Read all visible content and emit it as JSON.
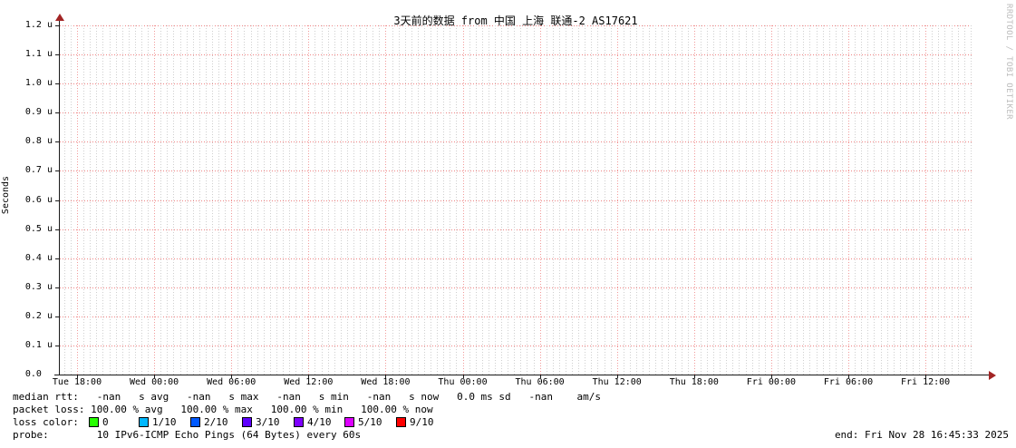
{
  "header": {
    "title": "3天前的数据 from 中国 上海 联通-2 AS17621"
  },
  "watermark": "RRDTOOL / TOBI OETIKER",
  "chart_data": {
    "type": "line",
    "title": "3天前的数据 from 中国 上海 联通-2 AS17621",
    "xlabel": "",
    "ylabel": "Seconds",
    "y_unit_prefix": "u (micro)",
    "ylim": [
      0.0,
      1.2e-06
    ],
    "y_tick_labels_bottom_to_top": [
      "0.0",
      "0.1 u",
      "0.2 u",
      "0.3 u",
      "0.4 u",
      "0.5 u",
      "0.6 u",
      "0.7 u",
      "0.8 u",
      "0.9 u",
      "1.0 u",
      "1.1 u",
      "1.2 u"
    ],
    "x_tick_labels": [
      "Tue 18:00",
      "Wed 00:00",
      "Wed 06:00",
      "Wed 12:00",
      "Wed 18:00",
      "Thu 00:00",
      "Thu 06:00",
      "Thu 12:00",
      "Thu 18:00",
      "Fri 00:00",
      "Fri 06:00",
      "Fri 12:00"
    ],
    "grid": true,
    "legend_position": "bottom",
    "series": [
      {
        "name": "median rtt",
        "values": [],
        "note": "no data plotted over entire 3-day window; all samples NaN (100% packet loss)"
      }
    ]
  },
  "stats": {
    "median_rtt_line": "median rtt:   -nan   s avg   -nan   s max   -nan   s min   -nan   s now   0.0 ms sd   -nan    am/s",
    "packet_loss_line": "packet loss: 100.00 % avg   100.00 % max   100.00 % min   100.00 % now",
    "loss_color_label": "loss color:",
    "loss_colors": [
      {
        "label": "0",
        "color": "#26ff00"
      },
      {
        "label": "1/10",
        "color": "#00b8ff"
      },
      {
        "label": "2/10",
        "color": "#0059ff"
      },
      {
        "label": "3/10",
        "color": "#5e00ff"
      },
      {
        "label": "4/10",
        "color": "#7e00ff"
      },
      {
        "label": "5/10",
        "color": "#dd00ff"
      },
      {
        "label": "9/10",
        "color": "#ff0000"
      }
    ],
    "probe_line": "probe:        10 IPv6-ICMP Echo Pings (64 Bytes) every 60s",
    "end_line": "end: Fri Nov 28 16:45:33 2025"
  },
  "colors": {
    "grid_major_horizontal": "#ef8383",
    "grid_major_vertical": "#f19a9a",
    "grid_minor_vertical": "#cfcfcf",
    "axis": "#1a1a1a",
    "arrow": "#a22424",
    "watermark_text": "#bcbcbc",
    "background": "#ffffff"
  }
}
